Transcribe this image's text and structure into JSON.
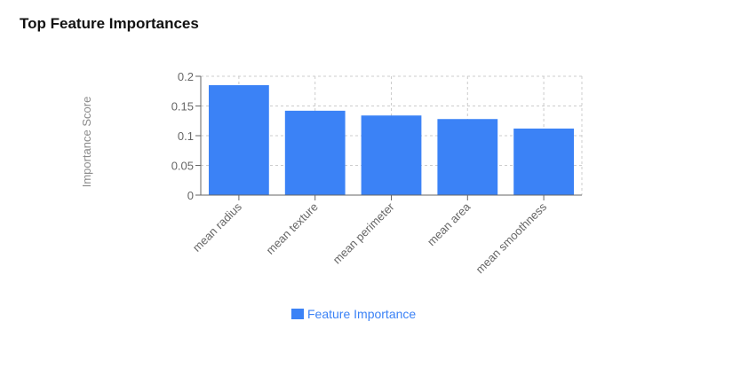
{
  "title": "Top Feature Importances",
  "colors": {
    "bar": "#3b82f6",
    "axis": "#666666",
    "grid": "#cccccc"
  },
  "chart_data": {
    "type": "bar",
    "categories": [
      "mean radius",
      "mean texture",
      "mean perimeter",
      "mean area",
      "mean smoothness"
    ],
    "series": [
      {
        "name": "Feature Importance",
        "values": [
          0.185,
          0.142,
          0.134,
          0.128,
          0.112
        ]
      }
    ],
    "ylabel": "Importance Score",
    "xlabel": "",
    "ylim": [
      0,
      0.2
    ],
    "yticks": [
      0,
      0.05,
      0.1,
      0.15,
      0.2
    ],
    "ytick_labels": [
      "0",
      "0.05",
      "0.1",
      "0.15",
      "0.2"
    ],
    "grid": true,
    "legend": "bottom-center"
  }
}
